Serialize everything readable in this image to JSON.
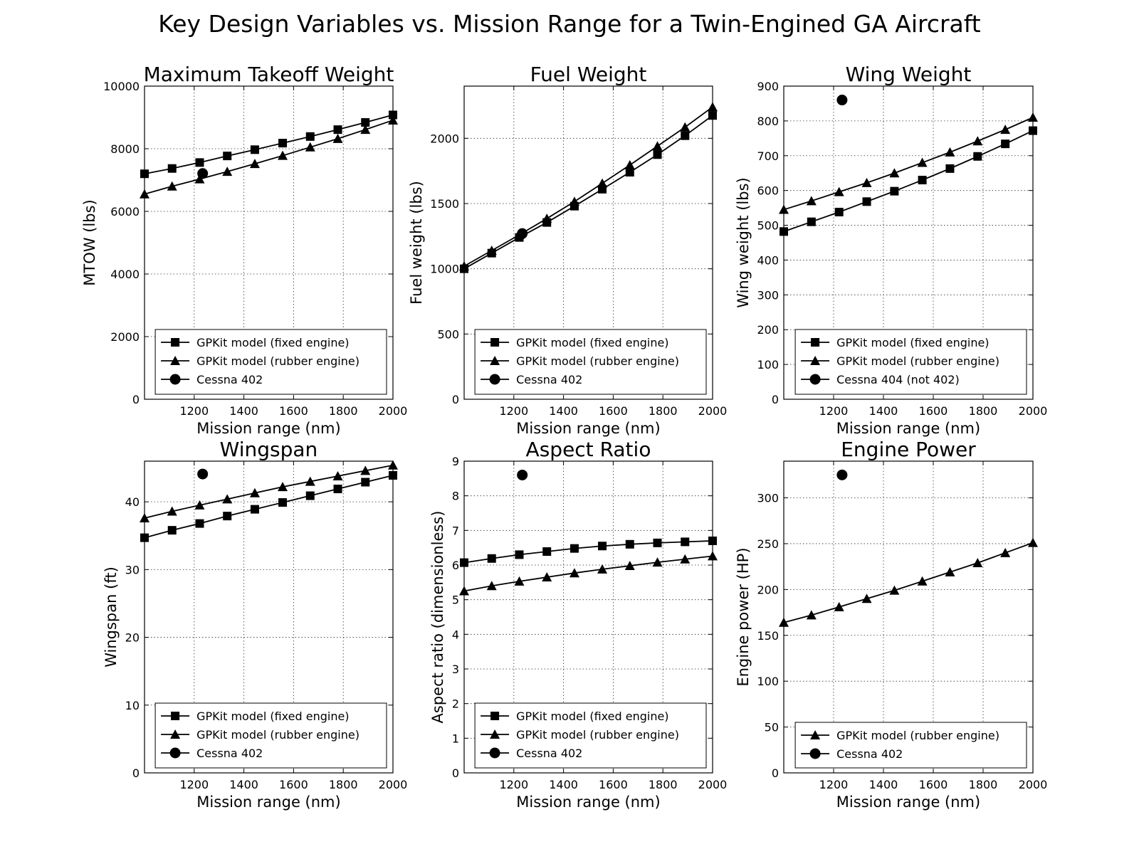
{
  "figure": {
    "title": "Key Design Variables vs. Mission Range for a Twin-Engined GA Aircraft"
  },
  "series_style": {
    "GPKit model (fixed engine)": "square",
    "GPKit model (rubber engine)": "triangle",
    "Cessna 402": "circle",
    "Cessna 404 (not 402)": "circle"
  },
  "colors": {
    "line": "#000000",
    "grid": "#000000",
    "background": "#ffffff"
  },
  "chart_data": [
    {
      "type": "line",
      "title": "Maximum Takeoff Weight",
      "xlabel": "Mission range (nm)",
      "ylabel": "MTOW (lbs)",
      "xlim": [
        1000,
        2000
      ],
      "ylim": [
        0,
        10000
      ],
      "xticks": [
        1200,
        1400,
        1600,
        1800,
        2000
      ],
      "yticks": [
        0,
        2000,
        4000,
        6000,
        8000,
        10000
      ],
      "grid": true,
      "legend": "bottom",
      "series": [
        {
          "name": "GPKit model (fixed engine)",
          "marker": "square",
          "x": [
            1000,
            1111,
            1222,
            1333,
            1444,
            1556,
            1667,
            1778,
            1889,
            2000
          ],
          "y": [
            7200,
            7370,
            7560,
            7770,
            7970,
            8180,
            8390,
            8610,
            8840,
            9080
          ]
        },
        {
          "name": "GPKit model (rubber engine)",
          "marker": "triangle",
          "x": [
            1000,
            1111,
            1222,
            1333,
            1444,
            1556,
            1667,
            1778,
            1889,
            2000
          ],
          "y": [
            6550,
            6800,
            7030,
            7270,
            7520,
            7780,
            8050,
            8320,
            8610,
            8910
          ]
        },
        {
          "name": "Cessna 402",
          "marker": "circle",
          "x": [
            1234
          ],
          "y": [
            7210
          ]
        }
      ]
    },
    {
      "type": "line",
      "title": "Fuel Weight",
      "xlabel": "Mission range (nm)",
      "ylabel": "Fuel weight (lbs)",
      "xlim": [
        1000,
        2000
      ],
      "ylim": [
        0,
        2400
      ],
      "xticks": [
        1200,
        1400,
        1600,
        1800,
        2000
      ],
      "yticks": [
        0,
        500,
        1000,
        1500,
        2000
      ],
      "grid": true,
      "legend": "bottom",
      "series": [
        {
          "name": "GPKit model (fixed engine)",
          "marker": "square",
          "x": [
            1000,
            1111,
            1222,
            1333,
            1444,
            1556,
            1667,
            1778,
            1889,
            2000
          ],
          "y": [
            1000,
            1120,
            1240,
            1355,
            1480,
            1610,
            1740,
            1875,
            2020,
            2175
          ]
        },
        {
          "name": "GPKit model (rubber engine)",
          "marker": "triangle",
          "x": [
            1000,
            1111,
            1222,
            1333,
            1444,
            1556,
            1667,
            1778,
            1889,
            2000
          ],
          "y": [
            1020,
            1140,
            1260,
            1385,
            1515,
            1655,
            1795,
            1940,
            2085,
            2240
          ]
        },
        {
          "name": "Cessna 402",
          "marker": "circle",
          "x": [
            1234
          ],
          "y": [
            1270
          ]
        }
      ]
    },
    {
      "type": "line",
      "title": "Wing Weight",
      "xlabel": "Mission range (nm)",
      "ylabel": "Wing weight (lbs)",
      "xlim": [
        1000,
        2000
      ],
      "ylim": [
        0,
        900
      ],
      "xticks": [
        1200,
        1400,
        1600,
        1800,
        2000
      ],
      "yticks": [
        0,
        100,
        200,
        300,
        400,
        500,
        600,
        700,
        800,
        900
      ],
      "grid": true,
      "legend": "bottom",
      "series": [
        {
          "name": "GPKit model (fixed engine)",
          "marker": "square",
          "x": [
            1000,
            1111,
            1222,
            1333,
            1444,
            1556,
            1667,
            1778,
            1889,
            2000
          ],
          "y": [
            482,
            510,
            538,
            568,
            598,
            630,
            663,
            698,
            734,
            772
          ]
        },
        {
          "name": "GPKit model (rubber engine)",
          "marker": "triangle",
          "x": [
            1000,
            1111,
            1222,
            1333,
            1444,
            1556,
            1667,
            1778,
            1889,
            2000
          ],
          "y": [
            545,
            570,
            596,
            622,
            650,
            680,
            710,
            742,
            775,
            810
          ]
        },
        {
          "name": "Cessna 404 (not 402)",
          "marker": "circle",
          "x": [
            1234
          ],
          "y": [
            860
          ]
        }
      ]
    },
    {
      "type": "line",
      "title": "Wingspan",
      "xlabel": "Mission range (nm)",
      "ylabel": "Wingspan (ft)",
      "xlim": [
        1000,
        2000
      ],
      "ylim": [
        0,
        46
      ],
      "xticks": [
        1200,
        1400,
        1600,
        1800,
        2000
      ],
      "yticks": [
        0,
        10,
        20,
        30,
        40
      ],
      "grid": true,
      "legend": "bottom",
      "series": [
        {
          "name": "GPKit model (fixed engine)",
          "marker": "square",
          "x": [
            1000,
            1111,
            1222,
            1333,
            1444,
            1556,
            1667,
            1778,
            1889,
            2000
          ],
          "y": [
            34.7,
            35.8,
            36.8,
            37.9,
            38.9,
            39.9,
            40.9,
            41.9,
            42.9,
            43.9
          ]
        },
        {
          "name": "GPKit model (rubber engine)",
          "marker": "triangle",
          "x": [
            1000,
            1111,
            1222,
            1333,
            1444,
            1556,
            1667,
            1778,
            1889,
            2000
          ],
          "y": [
            37.6,
            38.6,
            39.5,
            40.4,
            41.3,
            42.2,
            43.0,
            43.8,
            44.6,
            45.4
          ]
        },
        {
          "name": "Cessna 402",
          "marker": "circle",
          "x": [
            1234
          ],
          "y": [
            44.1
          ]
        }
      ]
    },
    {
      "type": "line",
      "title": "Aspect Ratio",
      "xlabel": "Mission range (nm)",
      "ylabel": "Aspect ratio (dimensionless)",
      "xlim": [
        1000,
        2000
      ],
      "ylim": [
        0,
        9
      ],
      "xticks": [
        1200,
        1400,
        1600,
        1800,
        2000
      ],
      "yticks": [
        0,
        1,
        2,
        3,
        4,
        5,
        6,
        7,
        8,
        9
      ],
      "grid": true,
      "legend": "bottom",
      "series": [
        {
          "name": "GPKit model (fixed engine)",
          "marker": "square",
          "x": [
            1000,
            1111,
            1222,
            1333,
            1444,
            1556,
            1667,
            1778,
            1889,
            2000
          ],
          "y": [
            6.07,
            6.19,
            6.3,
            6.39,
            6.48,
            6.55,
            6.6,
            6.64,
            6.67,
            6.7
          ]
        },
        {
          "name": "GPKit model (rubber engine)",
          "marker": "triangle",
          "x": [
            1000,
            1111,
            1222,
            1333,
            1444,
            1556,
            1667,
            1778,
            1889,
            2000
          ],
          "y": [
            5.25,
            5.4,
            5.53,
            5.65,
            5.77,
            5.88,
            5.98,
            6.08,
            6.17,
            6.26
          ]
        },
        {
          "name": "Cessna 402",
          "marker": "circle",
          "x": [
            1234
          ],
          "y": [
            8.6
          ]
        }
      ]
    },
    {
      "type": "line",
      "title": "Engine Power",
      "xlabel": "Mission range (nm)",
      "ylabel": "Engine power (HP)",
      "xlim": [
        1000,
        2000
      ],
      "ylim": [
        0,
        340
      ],
      "xticks": [
        1200,
        1400,
        1600,
        1800,
        2000
      ],
      "yticks": [
        0,
        50,
        100,
        150,
        200,
        250,
        300
      ],
      "grid": true,
      "legend": "bottom",
      "series": [
        {
          "name": "GPKit model (rubber engine)",
          "marker": "triangle",
          "x": [
            1000,
            1111,
            1222,
            1333,
            1444,
            1556,
            1667,
            1778,
            1889,
            2000
          ],
          "y": [
            164,
            172,
            181,
            190,
            199,
            209,
            219,
            229,
            240,
            251
          ]
        },
        {
          "name": "Cessna 402",
          "marker": "circle",
          "x": [
            1234
          ],
          "y": [
            325
          ]
        }
      ]
    }
  ]
}
